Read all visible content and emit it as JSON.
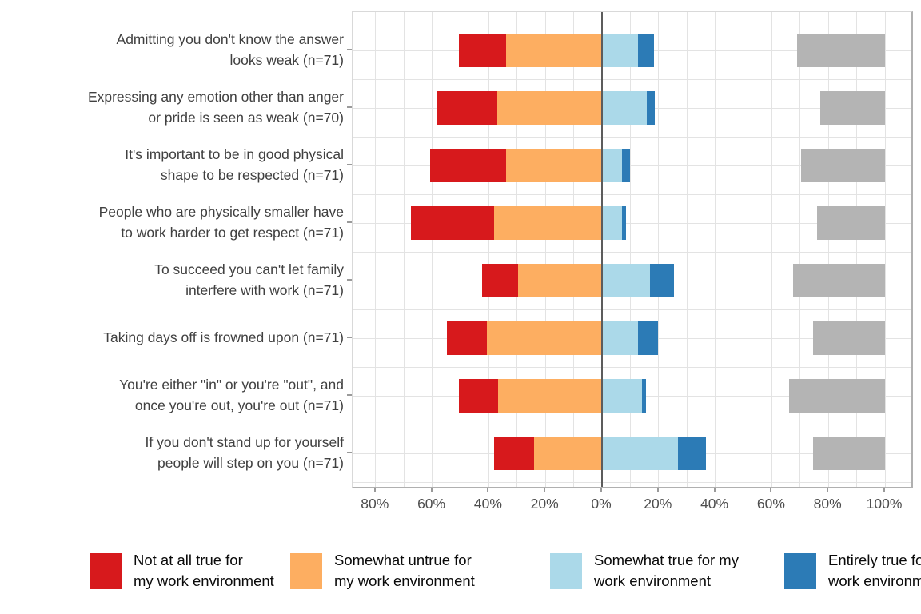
{
  "chart_data": {
    "type": "bar",
    "subtype": "horizontal-diverging-stacked-likert",
    "title": "",
    "xlabel": "",
    "ylabel": "",
    "grid": true,
    "x_axis": {
      "unit": "%",
      "tick_pcts": [
        -80,
        -60,
        -40,
        -20,
        0,
        20,
        40,
        60,
        80,
        100
      ],
      "tick_labels": [
        "80%",
        "60%",
        "40%",
        "20%",
        "0%",
        "20%",
        "40%",
        "60%",
        "80%",
        "100%"
      ]
    },
    "categories": [
      {
        "label": "Admitting you don't know the answer looks weak (n=71)",
        "lines": [
          "Admitting you don't know the answer",
          "looks weak (n=71)"
        ]
      },
      {
        "label": "Expressing any emotion other than anger or pride is seen as weak (n=70)",
        "lines": [
          "Expressing any emotion other than anger",
          "or pride is seen as weak (n=70)"
        ]
      },
      {
        "label": "It's important to be in good physical shape to be respected (n=71)",
        "lines": [
          "It's important to be in good physical",
          "shape to be respected (n=71)"
        ]
      },
      {
        "label": "People who are physically smaller have to work harder to get respect (n=71)",
        "lines": [
          "People who are physically smaller have",
          "to work harder to get respect (n=71)"
        ]
      },
      {
        "label": "To succeed you can't let family interfere with work (n=71)",
        "lines": [
          "To succeed you can't let family",
          "interfere with work (n=71)"
        ]
      },
      {
        "label": "Taking days off is frowned upon (n=71)",
        "lines": [
          "Taking days off is frowned upon (n=71)"
        ]
      },
      {
        "label": "You're either \"in\" or you're \"out\", and once you're out, you're out (n=71)",
        "lines": [
          "You're either \"in\" or you're \"out\", and",
          "once you're out, you're out (n=71)"
        ]
      },
      {
        "label": "If you don't stand up for yourself people will step on you (n=71)",
        "lines": [
          "If you don't stand up for yourself",
          "people will step on you (n=71)"
        ]
      }
    ],
    "series": [
      {
        "name": "Not at all true for my work environment",
        "side": "negative",
        "order_from_zero": 2,
        "color": "#d7191c",
        "values": [
          16.9,
          21.4,
          26.8,
          29.6,
          12.7,
          14.1,
          14.1,
          14.1
        ]
      },
      {
        "name": "Somewhat untrue for my work environment",
        "side": "negative",
        "order_from_zero": 1,
        "color": "#fdae61",
        "values": [
          33.8,
          37.1,
          33.8,
          38.0,
          29.6,
          40.8,
          36.6,
          23.9
        ]
      },
      {
        "name": "Somewhat true for my work environment",
        "side": "positive",
        "order_from_zero": 1,
        "color": "#abd9e9",
        "values": [
          12.7,
          15.7,
          7.0,
          7.0,
          16.9,
          12.7,
          14.1,
          26.8
        ]
      },
      {
        "name": "Entirely true for my work environment",
        "side": "positive",
        "order_from_zero": 2,
        "color": "#2c7bb6",
        "values": [
          5.6,
          2.9,
          2.8,
          1.4,
          8.5,
          7.0,
          1.4,
          9.9
        ]
      }
    ],
    "na_series": {
      "name": "gray-right-anchored-bar",
      "color": "#b4b4b4",
      "anchor_right_pct": 100,
      "values": [
        31.0,
        22.9,
        29.6,
        23.9,
        32.4,
        25.4,
        33.8,
        25.4
      ]
    },
    "legend": {
      "position": "bottom",
      "entries": [
        {
          "color": "#d7191c",
          "label": "Not at all true for my work environment",
          "lines": [
            "Not at all true for",
            "my work environment"
          ]
        },
        {
          "color": "#fdae61",
          "label": "Somewhat untrue for my work environment",
          "lines": [
            "Somewhat untrue for",
            "my work environment"
          ]
        },
        {
          "color": "#abd9e9",
          "label": "Somewhat true for my work environment",
          "lines": [
            "Somewhat true for my",
            "work environment"
          ]
        },
        {
          "color": "#2c7bb6",
          "label": "Entirely true for my work environment (clipped at right edge)",
          "lines": [
            "Entirely true for my",
            "work environment"
          ]
        }
      ]
    },
    "colors": {
      "zero_line": "#5c5c5c",
      "gridline": "#e3e3e3",
      "panel_border": "#b0b0b0",
      "axis_text": "#4d4d4d",
      "category_text": "#404040",
      "legend_text": "#0a0a0a",
      "na_bar": "#b4b4b4"
    }
  }
}
